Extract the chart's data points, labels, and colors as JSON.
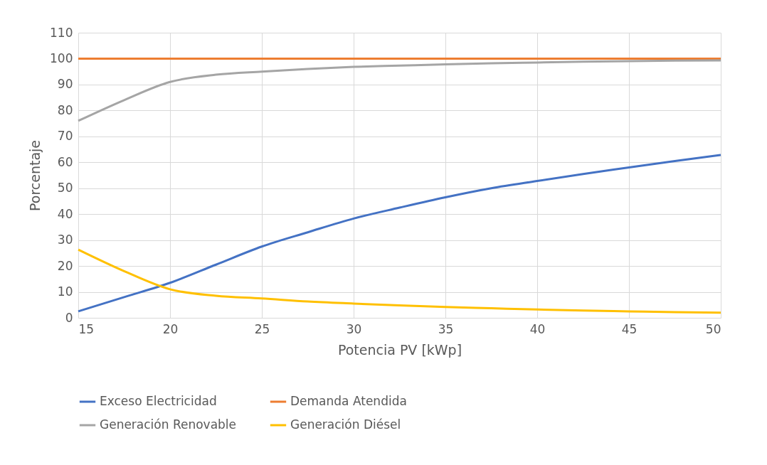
{
  "chart_data": {
    "type": "line",
    "xlabel": "Potencia PV [kWp]",
    "ylabel": "Porcentaje",
    "x": [
      15,
      17.5,
      20,
      22.5,
      25,
      27.5,
      30,
      32.5,
      35,
      37.5,
      40,
      42.5,
      45,
      47.5,
      50
    ],
    "series": [
      {
        "name": "Exceso Electricidad",
        "color": "#4472c4",
        "values": [
          2.5,
          8,
          13.5,
          20.5,
          27.5,
          33,
          38.3,
          42.5,
          46.5,
          50,
          52.8,
          55.5,
          58,
          60.5,
          62.8
        ]
      },
      {
        "name": "Demanda Atendida",
        "color": "#ed7d31",
        "values": [
          100,
          100,
          100,
          100,
          100,
          100,
          100,
          100,
          100,
          100,
          100,
          100,
          100,
          100,
          100
        ]
      },
      {
        "name": "Generación Renovable",
        "color": "#a5a5a5",
        "values": [
          76,
          84,
          91,
          93.8,
          95,
          96,
          96.8,
          97.3,
          97.8,
          98.2,
          98.5,
          98.8,
          99,
          99.2,
          99.3
        ]
      },
      {
        "name": "Generación Diésel",
        "color": "#ffc000",
        "values": [
          26.3,
          18,
          11,
          8.5,
          7.5,
          6.3,
          5.5,
          4.8,
          4.2,
          3.7,
          3.2,
          2.8,
          2.5,
          2.2,
          2
        ]
      }
    ],
    "xlim": [
      15,
      50
    ],
    "xticks": [
      15,
      20,
      25,
      30,
      35,
      40,
      45,
      50
    ],
    "ylim": [
      0,
      110
    ],
    "yticks": [
      0,
      10,
      20,
      30,
      40,
      50,
      60,
      70,
      80,
      90,
      100,
      110
    ],
    "grid": true,
    "legend": "bottom"
  }
}
